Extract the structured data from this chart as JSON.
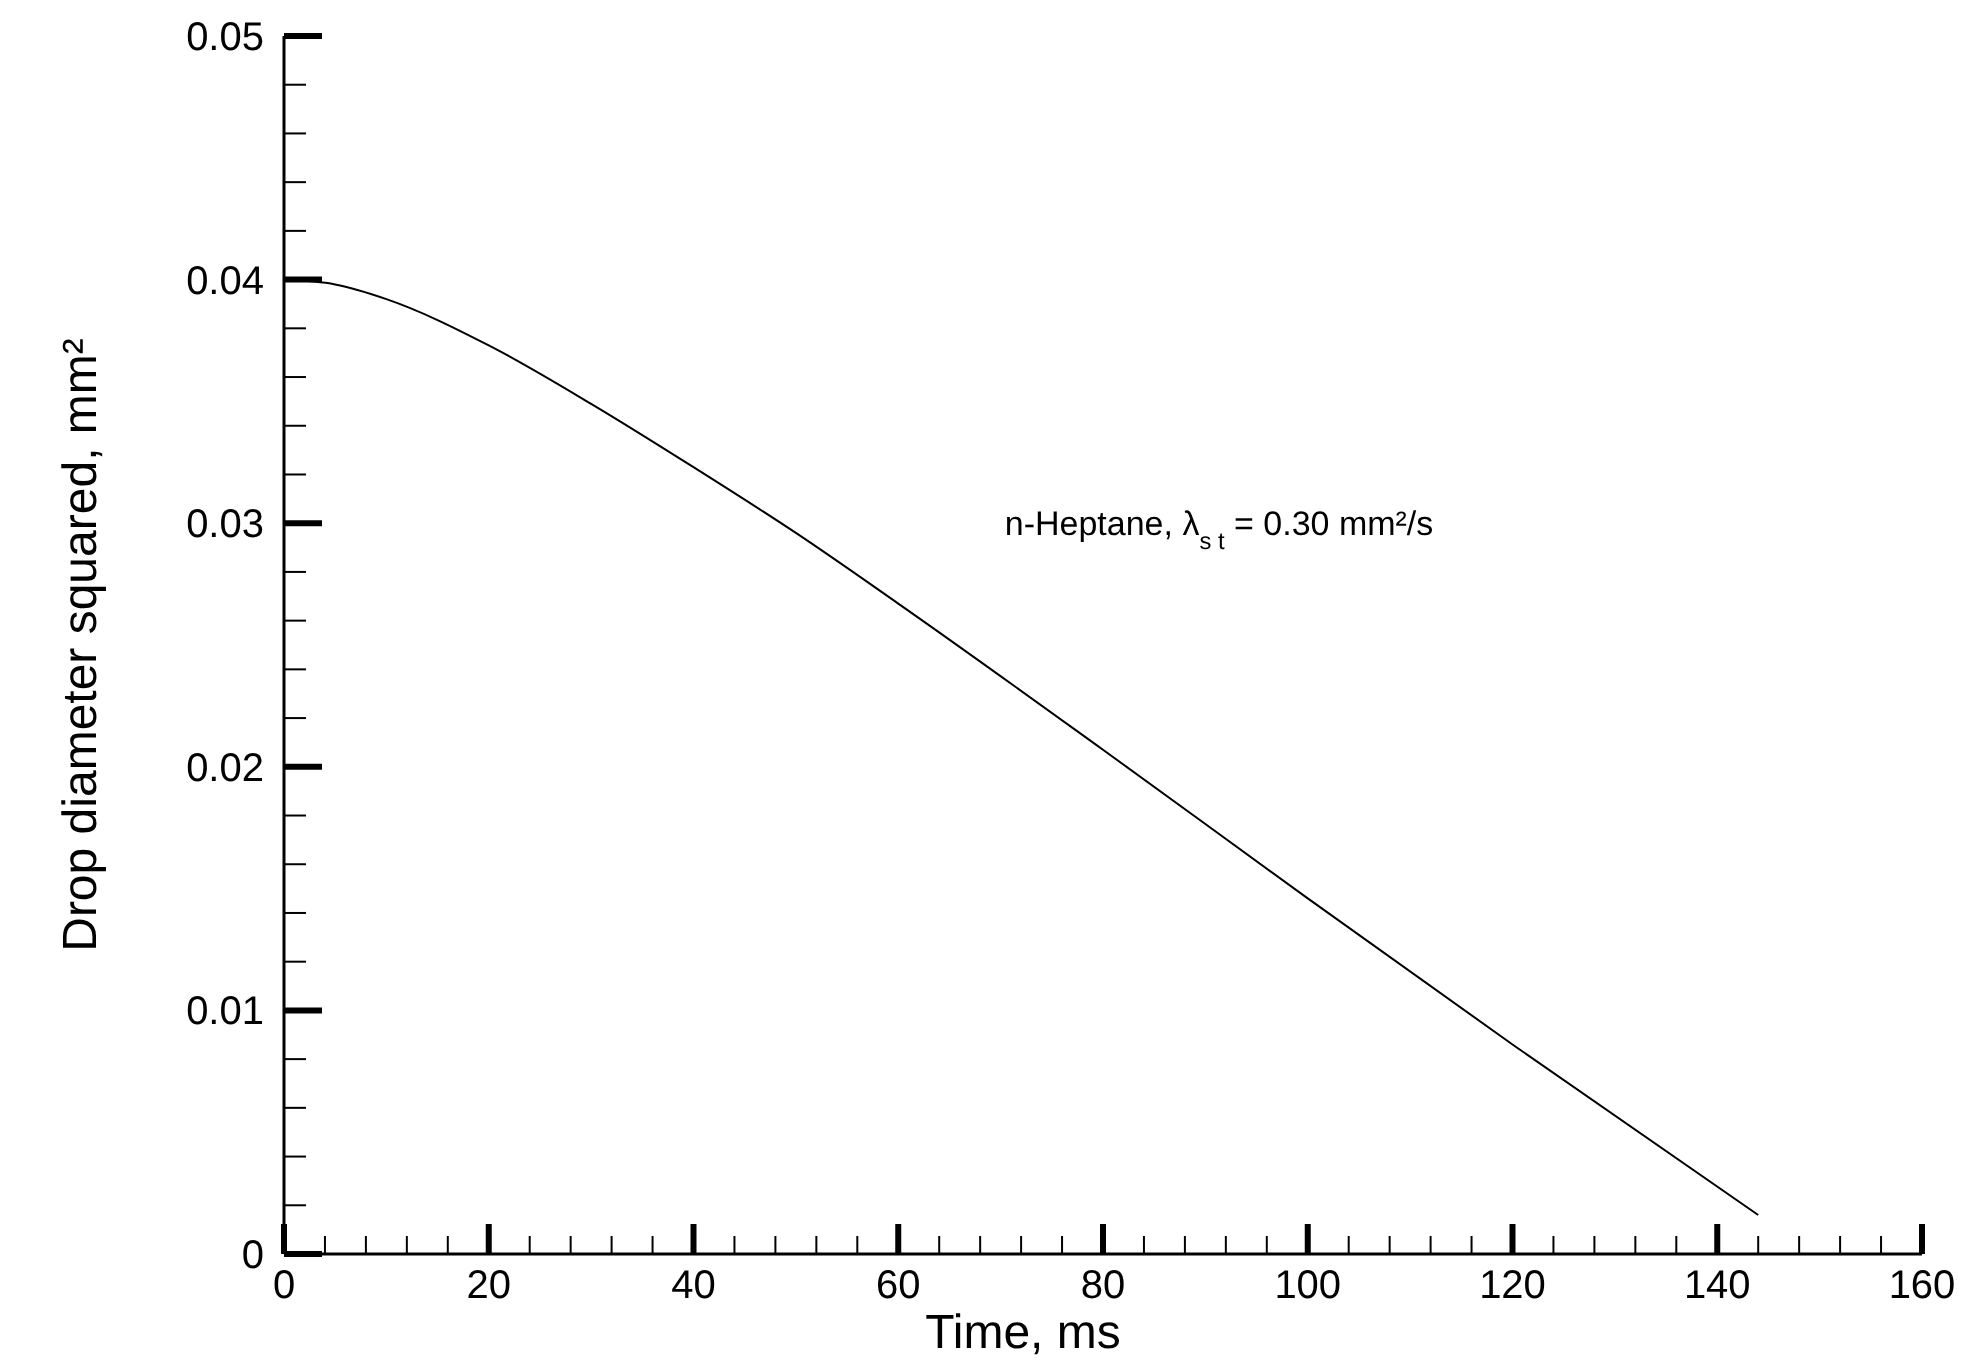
{
  "chart_data": {
    "type": "line",
    "xlabel": "Time, ms",
    "ylabel": "Drop diameter squared, mm²",
    "annotations": [
      "n-Heptane,  λ$_{s t}$ = 0.30 mm²/s"
    ],
    "x": [
      0,
      5,
      10,
      20,
      30,
      40,
      50,
      60,
      80,
      100,
      120,
      144
    ],
    "series": [
      {
        "color": "#000000",
        "values": [
          0.04,
          0.0398,
          0.0392,
          0.0373,
          0.0349,
          0.0323,
          0.0296,
          0.0267,
          0.0207,
          0.0146,
          0.0086,
          0.0016
        ]
      }
    ],
    "xlim": [
      0,
      160
    ],
    "ylim": [
      0,
      0.05
    ],
    "xticks": [
      0,
      {
        "value": 4,
        "label": null
      },
      {
        "value": 8,
        "label": null
      },
      {
        "value": 12,
        "label": null
      },
      {
        "value": 16,
        "label": null
      },
      20,
      {
        "value": 24,
        "label": null
      },
      {
        "value": 28,
        "label": null
      },
      {
        "value": 32,
        "label": null
      },
      {
        "value": 36,
        "label": null
      },
      40,
      {
        "value": 44,
        "label": null
      },
      {
        "value": 48,
        "label": null
      },
      {
        "value": 52,
        "label": null
      },
      {
        "value": 56,
        "label": null
      },
      60,
      {
        "value": 64,
        "label": null
      },
      {
        "value": 68,
        "label": null
      },
      {
        "value": 72,
        "label": null
      },
      {
        "value": 76,
        "label": null
      },
      80,
      {
        "value": 84,
        "label": null
      },
      {
        "value": 88,
        "label": null
      },
      {
        "value": 92,
        "label": null
      },
      {
        "value": 96,
        "label": null
      },
      100,
      {
        "value": 104,
        "label": null
      },
      {
        "value": 108,
        "label": null
      },
      {
        "value": 112,
        "label": null
      },
      {
        "value": 116,
        "label": null
      },
      120,
      {
        "value": 124,
        "label": null
      },
      {
        "value": 128,
        "label": null
      },
      {
        "value": 132,
        "label": null
      },
      {
        "value": 136,
        "label": null
      },
      140,
      {
        "value": 144,
        "label": null
      },
      {
        "value": 148,
        "label": null
      },
      {
        "value": 152,
        "label": null
      },
      {
        "value": 156,
        "label": null
      },
      160
    ],
    "yticks": [
      0,
      {
        "value": 0.002,
        "label": null
      },
      {
        "value": 0.004,
        "label": null
      },
      {
        "value": 0.006,
        "label": null
      },
      {
        "value": 0.008,
        "label": null
      },
      0.01,
      {
        "value": 0.012,
        "label": null
      },
      {
        "value": 0.014,
        "label": null
      },
      {
        "value": 0.016,
        "label": null
      },
      {
        "value": 0.018,
        "label": null
      },
      0.02,
      {
        "value": 0.022,
        "label": null
      },
      {
        "value": 0.024,
        "label": null
      },
      {
        "value": 0.026,
        "label": null
      },
      {
        "value": 0.028,
        "label": null
      },
      0.03,
      {
        "value": 0.032,
        "label": null
      },
      {
        "value": 0.034,
        "label": null
      },
      {
        "value": 0.036,
        "label": null
      },
      {
        "value": 0.038,
        "label": null
      },
      0.04,
      {
        "value": 0.042,
        "label": null
      },
      {
        "value": 0.044,
        "label": null
      },
      {
        "value": 0.046,
        "label": null
      },
      {
        "value": 0.048,
        "label": null
      },
      0.05
    ],
    "grid": false,
    "marker": "none",
    "line_style": "solid"
  }
}
